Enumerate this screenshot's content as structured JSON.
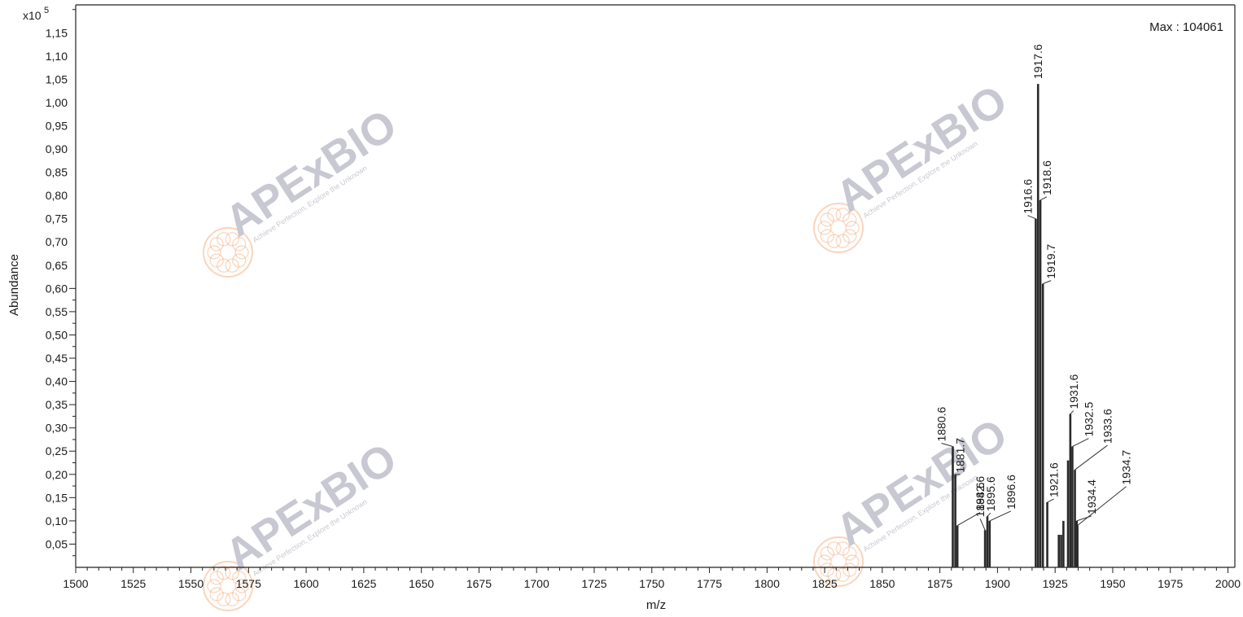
{
  "watermark": {
    "brand": "APExBIO",
    "tagline": "Achieve Perfection, Explore the Unknown",
    "brand_color": "#c8c8d2",
    "accent_color": "#f3a066"
  },
  "chart_data": {
    "type": "bar",
    "xlabel": "m/z",
    "ylabel": "Abundance",
    "y_exponent_label": "x10",
    "y_exponent": "5",
    "max_label": "Max : 104061",
    "xlim": [
      1500,
      2003
    ],
    "ylim": [
      0,
      1.21
    ],
    "y_unit_multiplier": 100000,
    "grid": false,
    "legend": "none",
    "x_ticks": [
      1500,
      1525,
      1550,
      1575,
      1600,
      1625,
      1650,
      1675,
      1700,
      1725,
      1750,
      1775,
      1800,
      1825,
      1850,
      1875,
      1900,
      1925,
      1950,
      1975,
      2000
    ],
    "x_tick_labels": [
      "1500",
      "1525",
      "1550",
      "1575",
      "1600",
      "1625",
      "1650",
      "1675",
      "1700",
      "1725",
      "1750",
      "1775",
      "1800",
      "1825",
      "1850",
      "1875",
      "1900",
      "1925",
      "1950",
      "1975",
      "2000"
    ],
    "y_ticks": [
      0.05,
      0.1,
      0.15,
      0.2,
      0.25,
      0.3,
      0.35,
      0.4,
      0.45,
      0.5,
      0.55,
      0.6,
      0.65,
      0.7,
      0.75,
      0.8,
      0.85,
      0.9,
      0.95,
      1.0,
      1.05,
      1.1,
      1.15
    ],
    "y_tick_labels": [
      "0,05",
      "0,10",
      "0,15",
      "0,20",
      "0,25",
      "0,30",
      "0,35",
      "0,40",
      "0,45",
      "0,50",
      "0,55",
      "0,60",
      "0,65",
      "0,70",
      "0,75",
      "0,80",
      "0,85",
      "0,90",
      "0,95",
      "1,00",
      "1,05",
      "1,10",
      "1,15"
    ],
    "bars_color": "#2a2a2a",
    "peaks": [
      {
        "x": 1880.6,
        "y": 0.26,
        "label": "1880.6"
      },
      {
        "x": 1881.7,
        "y": 0.2,
        "label": "1881.7"
      },
      {
        "x": 1882.6,
        "y": 0.09,
        "label": "1882.6"
      },
      {
        "x": 1894.6,
        "y": 0.08,
        "label": "1894.6"
      },
      {
        "x": 1895.6,
        "y": 0.11,
        "label": "1895.6"
      },
      {
        "x": 1896.6,
        "y": 0.1,
        "label": "1896.6"
      },
      {
        "x": 1916.6,
        "y": 0.75,
        "label": "1916.6"
      },
      {
        "x": 1917.6,
        "y": 1.04,
        "label": "1917.6"
      },
      {
        "x": 1918.6,
        "y": 0.79,
        "label": "1918.6"
      },
      {
        "x": 1919.7,
        "y": 0.61,
        "label": "1919.7"
      },
      {
        "x": 1921.6,
        "y": 0.14,
        "label": "1921.6"
      },
      {
        "x": 1926.6,
        "y": 0.07,
        "label": ""
      },
      {
        "x": 1927.6,
        "y": 0.07,
        "label": ""
      },
      {
        "x": 1928.6,
        "y": 0.1,
        "label": ""
      },
      {
        "x": 1930.6,
        "y": 0.23,
        "label": ""
      },
      {
        "x": 1931.6,
        "y": 0.33,
        "label": "1931.6"
      },
      {
        "x": 1932.5,
        "y": 0.26,
        "label": "1932.5"
      },
      {
        "x": 1933.6,
        "y": 0.21,
        "label": "1933.6"
      },
      {
        "x": 1934.4,
        "y": 0.1,
        "label": "1934.4"
      },
      {
        "x": 1934.7,
        "y": 0.09,
        "label": "1934.7"
      }
    ]
  }
}
